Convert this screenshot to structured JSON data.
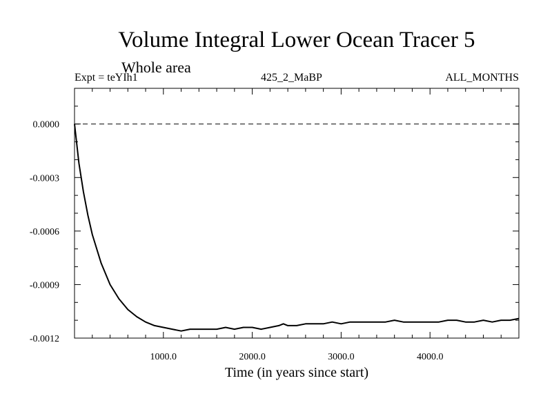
{
  "chart_data": {
    "type": "line",
    "title": "Volume Integral Lower Ocean Tracer 5",
    "subtitle": "Whole area",
    "annotations": {
      "left": "Expt = teYIh1",
      "center": "425_2_MaBP",
      "right": "ALL_MONTHS"
    },
    "xlabel": "Time (in years since start)",
    "ylabel": "",
    "xlim": [
      0,
      5000
    ],
    "ylim": [
      -0.0012,
      0.0002
    ],
    "x_ticks": [
      1000,
      2000,
      3000,
      4000
    ],
    "x_tick_labels": [
      "1000.0",
      "2000.0",
      "3000.0",
      "4000.0"
    ],
    "y_ticks": [
      0.0,
      -0.0003,
      -0.0006,
      -0.0009,
      -0.0012
    ],
    "y_tick_labels": [
      "0.0000",
      "-0.0003",
      "-0.0006",
      "-0.0009",
      "-0.0012"
    ],
    "reference_line": {
      "y": 0.0,
      "style": "dashed"
    },
    "series": [
      {
        "name": "Volume Integral Lower Ocean Tracer 5",
        "x": [
          0,
          50,
          100,
          150,
          200,
          300,
          400,
          500,
          600,
          700,
          800,
          900,
          1000,
          1100,
          1200,
          1300,
          1400,
          1500,
          1600,
          1700,
          1800,
          1900,
          2000,
          2100,
          2200,
          2300,
          2350,
          2400,
          2500,
          2600,
          2700,
          2800,
          2900,
          3000,
          3100,
          3200,
          3300,
          3400,
          3500,
          3600,
          3700,
          3800,
          3900,
          4000,
          4100,
          4200,
          4300,
          4400,
          4500,
          4600,
          4700,
          4800,
          4900,
          5000
        ],
        "values": [
          0.0,
          -0.00022,
          -0.00038,
          -0.00051,
          -0.00062,
          -0.00078,
          -0.0009,
          -0.00098,
          -0.00104,
          -0.00108,
          -0.00111,
          -0.00113,
          -0.00114,
          -0.00115,
          -0.00116,
          -0.00115,
          -0.00115,
          -0.00115,
          -0.00115,
          -0.00114,
          -0.00115,
          -0.00114,
          -0.00114,
          -0.00115,
          -0.00114,
          -0.00113,
          -0.00112,
          -0.00113,
          -0.00113,
          -0.00112,
          -0.00112,
          -0.00112,
          -0.00111,
          -0.00112,
          -0.00111,
          -0.00111,
          -0.00111,
          -0.00111,
          -0.00111,
          -0.0011,
          -0.00111,
          -0.00111,
          -0.00111,
          -0.00111,
          -0.00111,
          -0.0011,
          -0.0011,
          -0.00111,
          -0.00111,
          -0.0011,
          -0.00111,
          -0.0011,
          -0.0011,
          -0.00109
        ]
      }
    ]
  }
}
